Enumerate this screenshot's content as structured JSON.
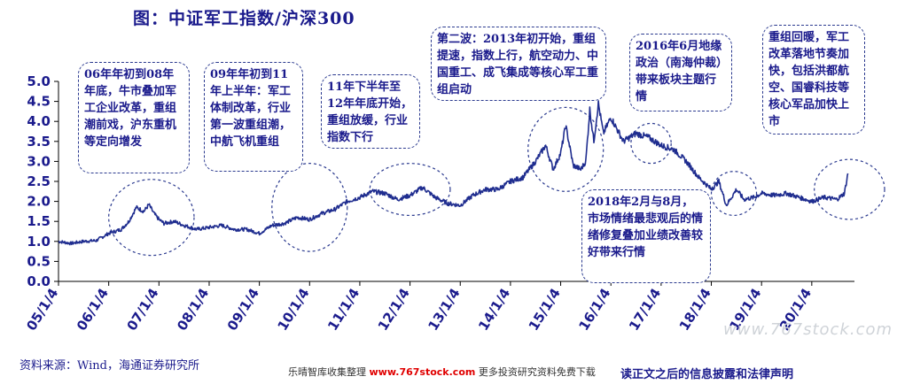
{
  "title": "图：中证军工指数/沪深300",
  "chart_data": {
    "type": "line",
    "title": "图：中证军工指数/沪深300",
    "xlabel": "",
    "ylabel": "",
    "ylim": [
      0,
      5
    ],
    "yticks": [
      "0.0",
      "0.5",
      "1.0",
      "1.5",
      "2.0",
      "2.5",
      "3.0",
      "3.5",
      "4.0",
      "4.5",
      "5.0"
    ],
    "xticks": [
      "05/1/4",
      "06/1/4",
      "07/1/4",
      "08/1/4",
      "09/1/4",
      "10/1/4",
      "11/1/4",
      "12/1/4",
      "13/1/4",
      "14/1/4",
      "15/1/4",
      "16/1/4",
      "17/1/4",
      "18/1/4",
      "19/1/4",
      "20/1/4"
    ],
    "series": [
      {
        "x": [
          2005.0,
          2005.25,
          2005.5,
          2005.75,
          2006.0,
          2006.25,
          2006.4,
          2006.55,
          2006.7,
          2006.8,
          2006.9,
          2007.0,
          2007.1,
          2007.3,
          2007.5,
          2007.75,
          2008.0,
          2008.25,
          2008.5,
          2008.75,
          2009.0,
          2009.25,
          2009.5,
          2009.75,
          2010.0,
          2010.25,
          2010.5,
          2010.75,
          2011.0,
          2011.25,
          2011.5,
          2011.75,
          2012.0,
          2012.25,
          2012.5,
          2012.75,
          2013.0,
          2013.25,
          2013.5,
          2013.75,
          2014.0,
          2014.25,
          2014.5,
          2014.7,
          2014.85,
          2015.0,
          2015.1,
          2015.25,
          2015.4,
          2015.5,
          2015.58,
          2015.66,
          2015.75,
          2015.85,
          2016.0,
          2016.25,
          2016.5,
          2016.75,
          2017.0,
          2017.25,
          2017.5,
          2017.75,
          2018.0,
          2018.15,
          2018.3,
          2018.5,
          2018.65,
          2018.85,
          2019.0,
          2019.25,
          2019.5,
          2019.75,
          2020.0,
          2020.25,
          2020.5,
          2020.65,
          2020.72
        ],
        "y": [
          1.0,
          0.95,
          1.0,
          1.02,
          1.2,
          1.3,
          1.5,
          1.85,
          1.75,
          1.92,
          1.7,
          1.55,
          1.45,
          1.5,
          1.4,
          1.3,
          1.35,
          1.4,
          1.3,
          1.3,
          1.2,
          1.4,
          1.45,
          1.6,
          1.55,
          1.7,
          1.8,
          2.0,
          2.1,
          2.25,
          2.2,
          2.05,
          2.15,
          2.35,
          2.1,
          1.95,
          1.9,
          2.15,
          2.3,
          2.3,
          2.5,
          2.6,
          3.0,
          3.4,
          2.8,
          3.2,
          3.9,
          2.9,
          2.8,
          3.0,
          4.3,
          3.5,
          4.45,
          3.7,
          4.1,
          3.5,
          3.7,
          3.6,
          3.4,
          3.3,
          3.0,
          2.6,
          2.3,
          2.5,
          1.9,
          2.3,
          2.05,
          2.1,
          2.2,
          2.15,
          2.2,
          2.1,
          2.0,
          2.1,
          2.05,
          2.2,
          2.7
        ]
      }
    ],
    "color": "#1f2d8f",
    "grid": false
  },
  "annotations": [
    "06年年初到08年年底，牛市叠加军工企业改革，重组潮前戏，沪东重机等定向增发",
    "09年年初到11年上半年：军工体制改革，行业第一波重组潮，中航飞机重组",
    "11年下半年至12年年底开始，重组放缓，行业指数下行",
    "第二波：2013年初开始，重组提速，指数上行，航空动力、中国重工、成飞集成等核心军工重组启动",
    "2016年6月地缘政治（南海仲裁）带来板块主题行情",
    "重组回暖，军工改革落地节奏加快，包括洪都航空、国睿科技等核心军品加快上市",
    "2018年2月与8月，市场情绪最悲观后的情绪修复叠加业绩改善较好带来行情"
  ],
  "source": "资料来源：Wind，海通证券研究所",
  "footer": {
    "prefix": "乐晴智库收集整理",
    "site": "www.767stock.com",
    "suffix": "更多投资研究资料免费下载"
  },
  "legal": "读正文之后的信息披露和法律声明",
  "watermark": "www.767stock.com"
}
